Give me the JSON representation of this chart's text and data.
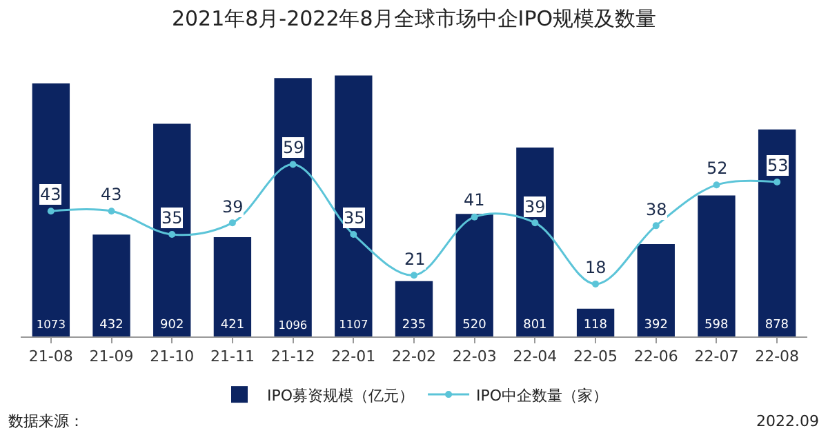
{
  "chart_data": {
    "type": "bar",
    "title": "2021年8月-2022年8月全球市场中企IPO规模及数量",
    "categories": [
      "21-08",
      "21-09",
      "21-10",
      "21-11",
      "21-12",
      "22-01",
      "22-02",
      "22-03",
      "22-04",
      "22-05",
      "22-06",
      "22-07",
      "22-08"
    ],
    "series": [
      {
        "name": "IPO募资规模（亿元）",
        "color": "#0c2461",
        "values": [
          1073,
          432,
          902,
          421,
          1096,
          1107,
          235,
          520,
          801,
          118,
          392,
          598,
          878
        ]
      },
      {
        "name": "IPO中企数量（家）",
        "type": "line",
        "axis": "y2",
        "color": "#5bc4d8",
        "marker": "circle",
        "values": [
          43,
          43,
          35,
          39,
          59,
          35,
          21,
          41,
          39,
          18,
          38,
          52,
          53
        ]
      }
    ],
    "data_labels": true,
    "legend": "bottom",
    "grid": false,
    "tick_labels": "x",
    "annotations": [
      "数据来源：",
      "2022.09"
    ]
  }
}
